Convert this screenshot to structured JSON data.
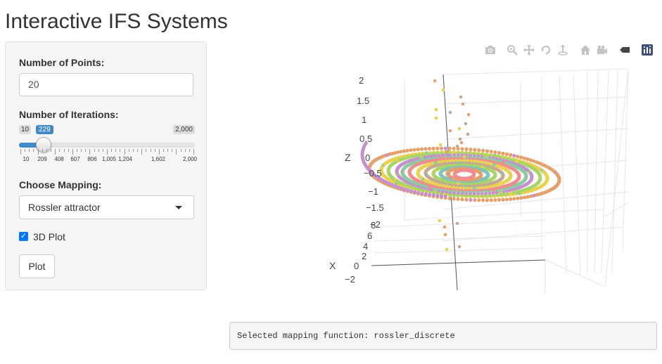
{
  "page": {
    "title": "Interactive IFS Systems"
  },
  "sidebar": {
    "points_label": "Number of Points:",
    "points_value": "20",
    "iterations_label": "Number of Iterations:",
    "slider": {
      "min": "10",
      "max": "2,000",
      "value": "229",
      "fraction": 0.11,
      "ticks": [
        "10",
        "209",
        "408",
        "607",
        "806",
        "1,005",
        "1,204",
        "1,602",
        "2,000"
      ]
    },
    "mapping_label": "Choose Mapping:",
    "mapping_value": "Rossler attractor",
    "plot3d_label": "3D Plot",
    "plot3d_checked": true,
    "plot_button": "Plot"
  },
  "modebar": {
    "icons": [
      "camera-icon",
      "zoom-icon",
      "pan-icon",
      "orbit-icon",
      "turntable-icon",
      "home-icon",
      "camera-view-icon",
      "hover-icon",
      "plotly-logo-icon"
    ]
  },
  "plot3d": {
    "z_axis_title": "Z",
    "x_axis_title": "X",
    "z_ticks": [
      "2",
      "1.5",
      "1",
      "0.5",
      "0",
      "−0.5",
      "−1",
      "−1.5",
      "−2"
    ],
    "x_ticks": [
      "8",
      "6",
      "4",
      "2",
      "0",
      "−2"
    ],
    "colors": [
      "#e5a06d",
      "#c491cd",
      "#a8d468",
      "#e8d24f",
      "#8cc9a5",
      "#f08c8c",
      "#c6a88f",
      "#7fc4b6",
      "#b4b4b4"
    ]
  },
  "output": {
    "text": "Selected mapping function: rossler_discrete"
  }
}
